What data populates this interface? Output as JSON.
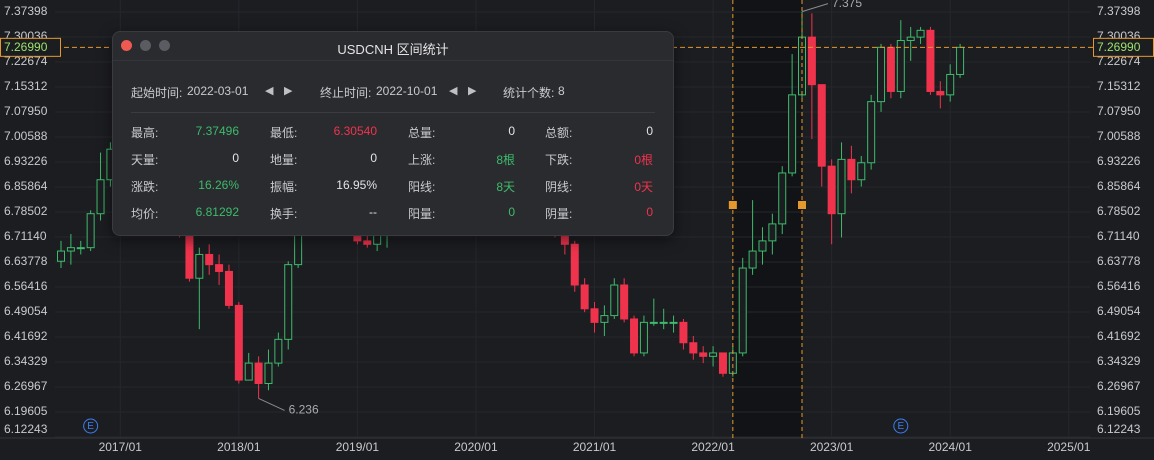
{
  "chart_data": {
    "type": "candlestick",
    "symbol": "USDCNH",
    "categories": [
      "2016/07",
      "2016/08",
      "2016/09",
      "2016/10",
      "2016/11",
      "2016/12",
      "2017/01",
      "2017/02",
      "2017/03",
      "2017/04",
      "2017/05",
      "2017/06",
      "2017/07",
      "2017/08",
      "2017/09",
      "2017/10",
      "2017/11",
      "2017/12",
      "2018/01",
      "2018/02",
      "2018/03",
      "2018/04",
      "2018/05",
      "2018/06",
      "2018/07",
      "2018/08",
      "2018/09",
      "2018/10",
      "2018/11",
      "2018/12",
      "2019/01",
      "2019/02",
      "2019/03",
      "2019/04",
      "2019/05",
      "2019/06",
      "2019/07",
      "2019/08",
      "2019/09",
      "2019/10",
      "2019/11",
      "2019/12",
      "2020/01",
      "2020/02",
      "2020/03",
      "2020/04",
      "2020/05",
      "2020/06",
      "2020/07",
      "2020/08",
      "2020/09",
      "2020/10",
      "2020/11",
      "2020/12",
      "2021/01",
      "2021/02",
      "2021/03",
      "2021/04",
      "2021/05",
      "2021/06",
      "2021/07",
      "2021/08",
      "2021/09",
      "2021/10",
      "2021/11",
      "2021/12",
      "2022/01",
      "2022/02",
      "2022/03",
      "2022/04",
      "2022/05",
      "2022/06",
      "2022/07",
      "2022/08",
      "2022/09",
      "2022/10",
      "2022/11",
      "2022/12",
      "2023/01",
      "2023/02",
      "2023/03",
      "2023/04",
      "2023/05",
      "2023/06",
      "2023/07",
      "2023/08",
      "2023/09",
      "2023/10",
      "2023/11",
      "2023/12",
      "2024/01",
      "2024/02"
    ],
    "open": [
      6.64,
      6.67,
      6.68,
      6.68,
      6.78,
      6.88,
      6.97,
      6.83,
      6.87,
      6.88,
      6.9,
      6.78,
      6.78,
      6.73,
      6.59,
      6.66,
      6.63,
      6.61,
      6.51,
      6.29,
      6.34,
      6.28,
      6.34,
      6.41,
      6.63,
      6.82,
      6.83,
      6.87,
      6.98,
      6.95,
      6.87,
      6.7,
      6.69,
      6.73,
      6.74,
      6.93,
      6.87,
      6.91,
      7.17,
      7.14,
      7.04,
      7.03,
      6.96,
      6.94,
      6.99,
      7.09,
      7.08,
      7.15,
      7.07,
      6.99,
      6.85,
      6.79,
      6.69,
      6.57,
      6.5,
      6.46,
      6.48,
      6.57,
      6.47,
      6.37,
      6.46,
      6.46,
      6.46,
      6.46,
      6.4,
      6.37,
      6.36,
      6.37,
      6.31,
      6.37,
      6.62,
      6.67,
      6.7,
      6.75,
      6.9,
      7.13,
      7.3,
      7.16,
      6.92,
      6.78,
      6.94,
      6.88,
      6.93,
      7.11,
      7.27,
      7.14,
      7.29,
      7.3,
      7.32,
      7.14,
      7.13,
      7.19
    ],
    "high": [
      6.7,
      6.72,
      6.7,
      6.79,
      6.96,
      6.99,
      6.99,
      6.89,
      6.92,
      6.92,
      6.91,
      6.83,
      6.8,
      6.74,
      6.68,
      6.69,
      6.66,
      6.63,
      6.52,
      6.37,
      6.36,
      6.38,
      6.43,
      6.64,
      6.86,
      6.9,
      6.89,
      6.98,
      6.98,
      6.97,
      6.89,
      6.78,
      6.74,
      6.76,
      6.94,
      6.94,
      6.92,
      7.19,
      7.19,
      7.15,
      7.05,
      7.04,
      6.99,
      7.05,
      7.16,
      7.13,
      7.19,
      7.16,
      7.07,
      7.0,
      6.85,
      6.8,
      6.7,
      6.59,
      6.52,
      6.51,
      6.59,
      6.59,
      6.48,
      6.48,
      6.53,
      6.5,
      6.48,
      6.47,
      6.42,
      6.39,
      6.39,
      6.37,
      6.39,
      6.65,
      6.82,
      6.74,
      6.78,
      6.92,
      7.25,
      7.375,
      7.37,
      7.16,
      6.94,
      6.99,
      6.98,
      6.95,
      7.13,
      7.28,
      7.28,
      7.35,
      7.33,
      7.33,
      7.33,
      7.17,
      7.22,
      7.28
    ],
    "low": [
      6.62,
      6.63,
      6.66,
      6.67,
      6.76,
      6.86,
      6.78,
      6.81,
      6.86,
      6.87,
      6.77,
      6.76,
      6.71,
      6.58,
      6.44,
      6.6,
      6.57,
      6.5,
      6.28,
      6.29,
      6.236,
      6.26,
      6.33,
      6.38,
      6.62,
      6.79,
      6.8,
      6.86,
      6.88,
      6.85,
      6.69,
      6.68,
      6.67,
      6.68,
      6.73,
      6.85,
      6.85,
      6.9,
      7.07,
      7.02,
      6.98,
      6.96,
      6.86,
      6.93,
      6.92,
      7.02,
      7.06,
      7.05,
      6.98,
      6.84,
      6.71,
      6.66,
      6.55,
      6.49,
      6.43,
      6.42,
      6.47,
      6.46,
      6.36,
      6.36,
      6.45,
      6.44,
      6.43,
      6.38,
      6.35,
      6.34,
      6.33,
      6.3,
      6.3,
      6.36,
      6.6,
      6.63,
      6.66,
      6.72,
      6.89,
      7.11,
      7.0,
      6.86,
      6.69,
      6.71,
      6.84,
      6.86,
      6.91,
      7.08,
      7.12,
      7.12,
      7.23,
      7.28,
      7.13,
      7.09,
      7.11,
      7.18
    ],
    "close": [
      6.67,
      6.68,
      6.68,
      6.78,
      6.88,
      6.97,
      6.83,
      6.87,
      6.88,
      6.9,
      6.78,
      6.78,
      6.73,
      6.59,
      6.66,
      6.63,
      6.61,
      6.51,
      6.29,
      6.34,
      6.28,
      6.34,
      6.41,
      6.63,
      6.82,
      6.83,
      6.87,
      6.98,
      6.95,
      6.87,
      6.7,
      6.69,
      6.73,
      6.74,
      6.93,
      6.87,
      6.91,
      7.17,
      7.14,
      7.04,
      7.03,
      6.96,
      6.94,
      6.99,
      7.09,
      7.08,
      7.15,
      7.07,
      6.99,
      6.85,
      6.79,
      6.69,
      6.57,
      6.5,
      6.46,
      6.48,
      6.57,
      6.47,
      6.37,
      6.46,
      6.46,
      6.46,
      6.46,
      6.4,
      6.37,
      6.36,
      6.37,
      6.31,
      6.37,
      6.62,
      6.67,
      6.7,
      6.75,
      6.9,
      7.13,
      7.3,
      7.16,
      6.92,
      6.78,
      6.94,
      6.88,
      6.93,
      7.11,
      7.27,
      7.14,
      7.29,
      7.3,
      7.32,
      7.14,
      7.13,
      7.19,
      7.2699
    ],
    "up_color": "#3dbb6b",
    "down_color": "#f0334d",
    "ylim": [
      6.12243,
      7.37398
    ],
    "yticks": [
      7.37398,
      7.30036,
      7.22674,
      7.15312,
      {
        "value": 7.0795,
        "label": "7.07950"
      },
      7.00588,
      6.93226,
      6.85864,
      6.78502,
      {
        "value": 6.7114,
        "label": "6.71140"
      },
      6.63778,
      6.56416,
      6.49054,
      6.41692,
      6.34329,
      6.26967,
      6.19605,
      6.12243
    ],
    "xticks": [
      "2017/01",
      "2018/01",
      "2019/01",
      "2020/01",
      "2021/01",
      "2022/01",
      "2023/01",
      "2024/01",
      "2025/01"
    ],
    "last_price": {
      "value": 7.2699,
      "label": "7.26990"
    },
    "annotations": [
      {
        "x": "2022/10",
        "value": 7.375
      },
      {
        "x": "2018/03",
        "value": 6.236
      }
    ],
    "events": [
      {
        "x": "2016/10",
        "label": "E"
      },
      {
        "x": "2023/08",
        "label": "E"
      }
    ],
    "grid": true
  },
  "popup": {
    "title": "USDCNH 区间统计",
    "start_label": "起始时间:",
    "start": "2022-03-01",
    "end_label": "终止时间:",
    "end": "2022-10-01",
    "count_label": "统计个数:",
    "count": "8",
    "stats": [
      [
        {
          "label": "最高:",
          "value": "7.37496",
          "tone": "up"
        },
        {
          "label": "最低:",
          "value": "6.30540",
          "tone": "down"
        },
        {
          "label": "总量:",
          "value": "0",
          "tone": "neutral"
        },
        {
          "label": "总额:",
          "value": "0",
          "tone": "neutral"
        }
      ],
      [
        {
          "label": "天量:",
          "value": "0",
          "tone": "neutral"
        },
        {
          "label": "地量:",
          "value": "0",
          "tone": "neutral"
        },
        {
          "label": "上涨:",
          "value": "8根",
          "tone": "up"
        },
        {
          "label": "下跌:",
          "value": "0根",
          "tone": "down"
        }
      ],
      [
        {
          "label": "涨跌:",
          "value": "16.26%",
          "tone": "up"
        },
        {
          "label": "振幅:",
          "value": "16.95%",
          "tone": "neutral"
        },
        {
          "label": "阳线:",
          "value": "8天",
          "tone": "up"
        },
        {
          "label": "阴线:",
          "value": "0天",
          "tone": "down"
        }
      ],
      [
        {
          "label": "均价:",
          "value": "6.81292",
          "tone": "up"
        },
        {
          "label": "换手:",
          "value": "--",
          "tone": "neutral"
        },
        {
          "label": "阳量:",
          "value": "0",
          "tone": "up"
        },
        {
          "label": "阴量:",
          "value": "0",
          "tone": "down"
        }
      ]
    ]
  }
}
